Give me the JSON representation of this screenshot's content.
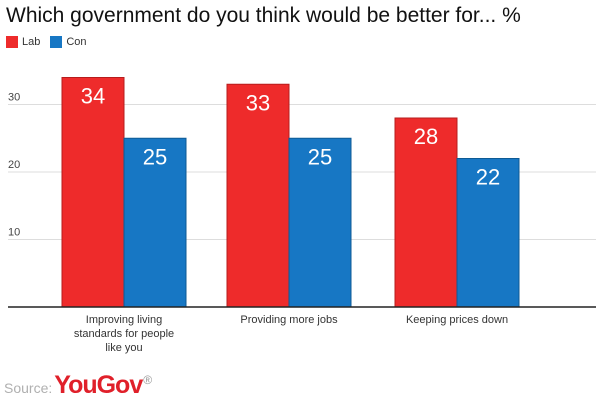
{
  "title": "Which government do you think would be better for... %",
  "colors": {
    "Lab": "#ee2b2b",
    "Con": "#1777c4",
    "grid": "#dddddd",
    "axis": "#222222"
  },
  "chart_data": {
    "type": "bar",
    "title": "Which government do you think would be better for... %",
    "categories": [
      [
        "Improving living",
        "standards for people",
        "like you"
      ],
      [
        "Providing more jobs"
      ],
      [
        "Keeping prices down"
      ]
    ],
    "series": [
      {
        "name": "Lab",
        "values": [
          34,
          33,
          28
        ]
      },
      {
        "name": "Con",
        "values": [
          25,
          25,
          22
        ]
      }
    ],
    "yticks": [
      10,
      20,
      30
    ],
    "ylim": [
      0,
      38
    ],
    "grid": true,
    "legend": "top-left",
    "xlabel": "",
    "ylabel": ""
  },
  "source": {
    "label": "Source:",
    "brand": "YouGov",
    "mark": "®"
  }
}
